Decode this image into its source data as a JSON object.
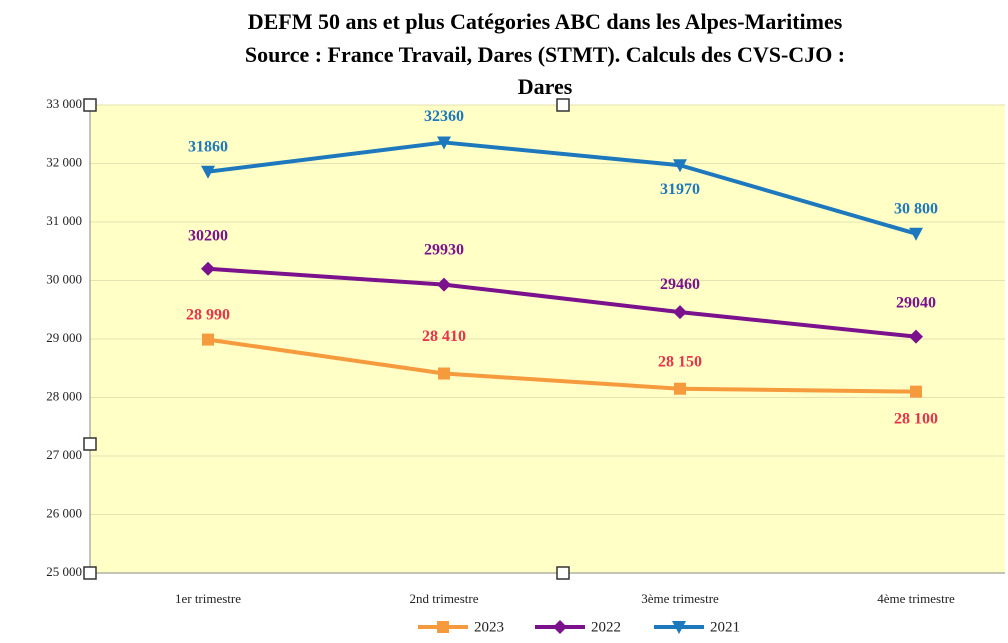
{
  "chart_data": {
    "type": "line",
    "title": [
      "DEFM 50 ans et plus  Catégories ABC dans les Alpes-Maritimes",
      "Source : France Travail, Dares (STMT). Calculs des CVS-CJO :",
      "Dares"
    ],
    "categories": [
      "1er trimestre",
      "2nd  trimestre",
      "3ème trimestre",
      "4ème trimestre"
    ],
    "series": [
      {
        "name": "2023",
        "color": "#f59a3d",
        "label_color": "#e8334a",
        "marker": "square",
        "values": [
          28990,
          28410,
          28150,
          28100
        ],
        "value_labels": [
          "28 990",
          "28 410",
          "28 150",
          "28 100"
        ]
      },
      {
        "name": "2022",
        "color": "#7b118c",
        "label_color": "#7b118c",
        "marker": "diamond",
        "values": [
          30200,
          29930,
          29460,
          29040
        ]
      },
      {
        "name": "2021",
        "color": "#1d78bd",
        "label_color": "#1d78bd",
        "marker": "triangle",
        "values": [
          31860,
          32360,
          31970,
          30800
        ],
        "value_labels": [
          "31860",
          "32360",
          "31970",
          "30 800"
        ]
      }
    ],
    "ylim": [
      25000,
      33000
    ],
    "yticks": [
      {
        "value": 25000,
        "label": "25 000"
      },
      {
        "value": 26000,
        "label": "26 000"
      },
      {
        "value": 27000,
        "label": "27 000"
      },
      {
        "value": 28000,
        "label": "28 000"
      },
      {
        "value": 29000,
        "label": "29 000"
      },
      {
        "value": 30000,
        "label": "30 000"
      },
      {
        "value": 31000,
        "label": "31 000"
      },
      {
        "value": 32000,
        "label": "32 000"
      },
      {
        "value": 33000,
        "label": "33 000"
      }
    ],
    "grid": true,
    "background": "#ffffc6",
    "legend": "bottom"
  }
}
